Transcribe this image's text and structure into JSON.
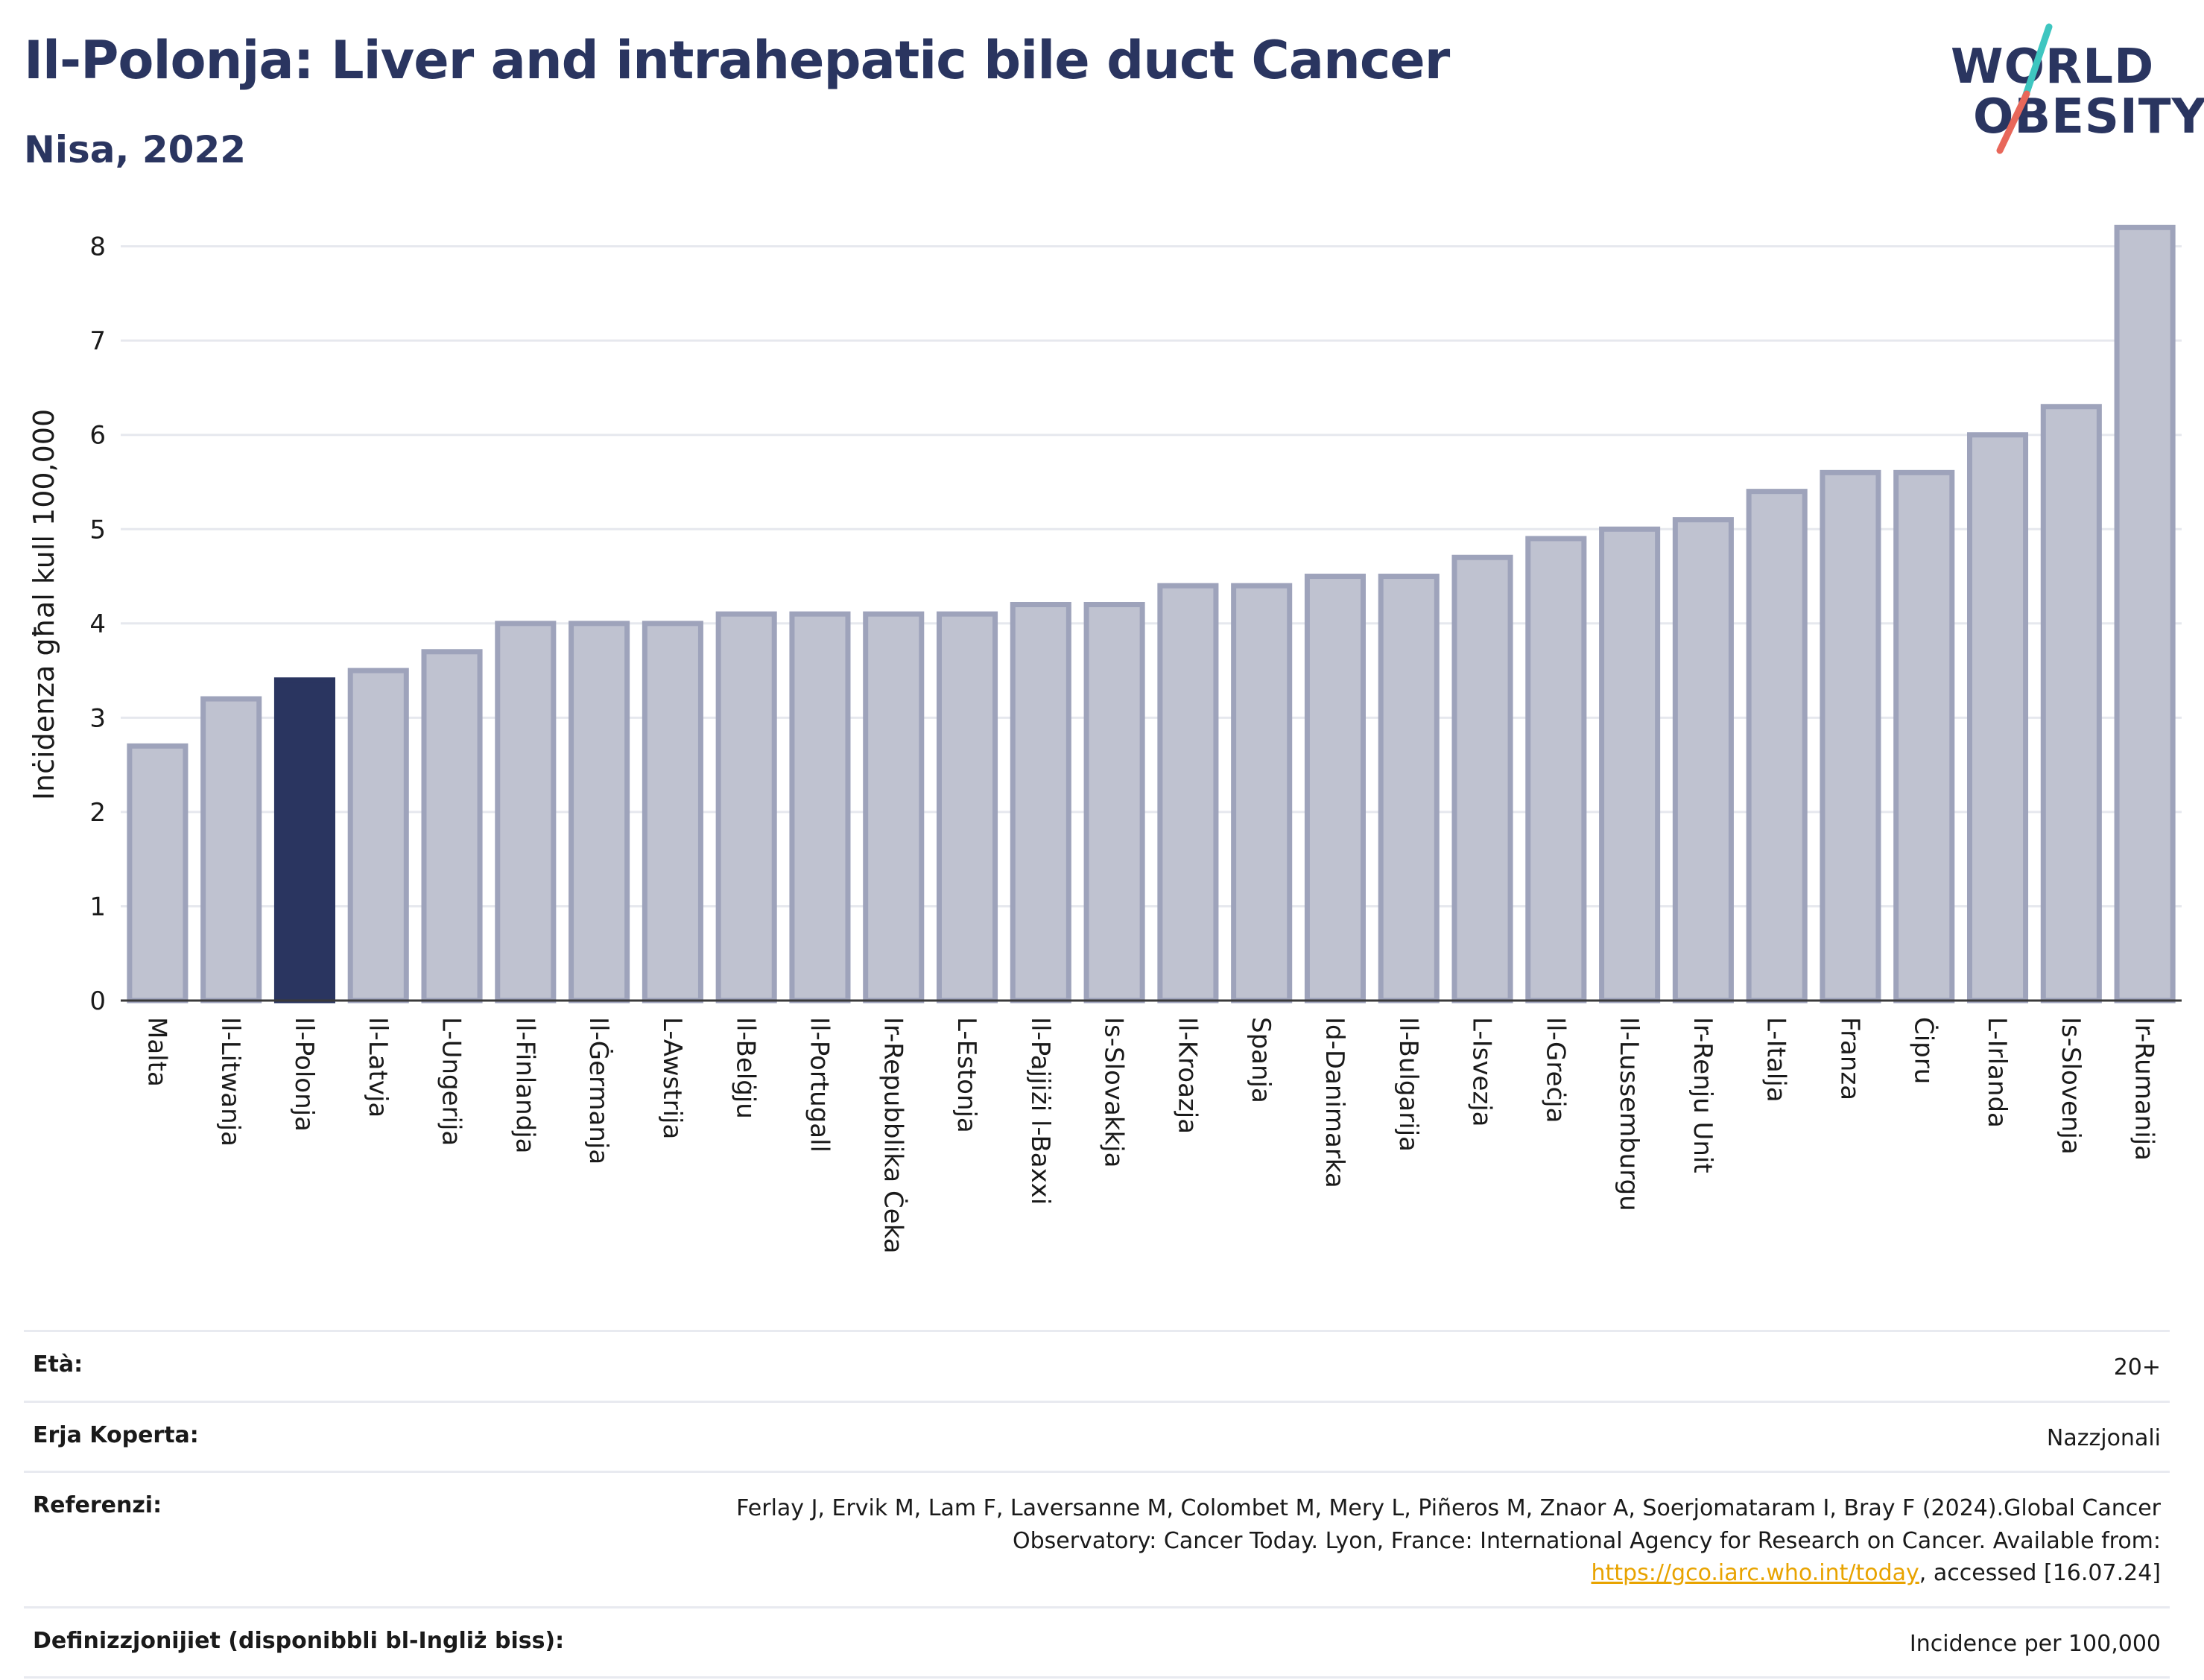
{
  "header": {
    "title": "Il-Polonja: Liver and intrahepatic bile duct Cancer",
    "subtitle": "Nisa, 2022"
  },
  "logo": {
    "line1": "WORLD",
    "line2": "OBESITY",
    "slash_colors": [
      "#3ec6c0",
      "#e8675a"
    ]
  },
  "chart_data": {
    "type": "bar",
    "categories": [
      "Malta",
      "Il-Litwanja",
      "Il-Polonja",
      "Il-Latvja",
      "L-Ungerija",
      "Il-Finlandja",
      "Il-Ġermanja",
      "L-Awstrija",
      "Il-Belġju",
      "Il-Portugall",
      "Ir-Repubblika Ċeka",
      "L-Estonja",
      "Il-Pajjiżi l-Baxxi",
      "Is-Slovakkja",
      "Il-Kroazja",
      "Spanja",
      "Id-Danimarka",
      "Il-Bulgarija",
      "L-Isvezja",
      "Il-Greċja",
      "Il-Lussemburgu",
      "Ir-Renju Unit",
      "L-Italja",
      "Franza",
      "Ċipru",
      "L-Irlanda",
      "Is-Slovenja",
      "Ir-Rumanija"
    ],
    "values": [
      2.7,
      3.2,
      3.4,
      3.5,
      3.7,
      4.0,
      4.0,
      4.0,
      4.1,
      4.1,
      4.1,
      4.1,
      4.2,
      4.2,
      4.4,
      4.4,
      4.5,
      4.5,
      4.7,
      4.9,
      5.0,
      5.1,
      5.4,
      5.6,
      5.6,
      6.0,
      6.3,
      8.2
    ],
    "highlight": "Il-Polonja",
    "ylabel": "Inċidenza għal kull 100,000",
    "xlabel": "",
    "ylim": [
      0,
      8.4
    ],
    "yticks": [
      0,
      1,
      2,
      3,
      4,
      5,
      6,
      7,
      8
    ],
    "grid": true,
    "colors": {
      "bar": "#bfc2d0",
      "bar_edge": "#9ea3bb",
      "highlight": "#2a3560"
    }
  },
  "meta": {
    "age_label": "Età:",
    "age_value": "20+",
    "area_label": "Erja Koperta:",
    "area_value": "Nazzjonali",
    "ref_label": "Referenzi:",
    "ref_text1": "Ferlay J, Ervik M, Lam F, Laversanne M, Colombet M, Mery L, Piñeros M, Znaor A, Soerjomataram I, Bray F (2024).Global Cancer Observatory: Cancer Today. Lyon, France: International Agency for Research on Cancer. Available from: ",
    "ref_link": "https://gco.iarc.who.int/today",
    "ref_text2": ", accessed [16.07.24]",
    "def_label": "Definizzjonijiet (disponibbli bl-Ingliż biss):",
    "def_value": "Incidence per 100,000"
  }
}
